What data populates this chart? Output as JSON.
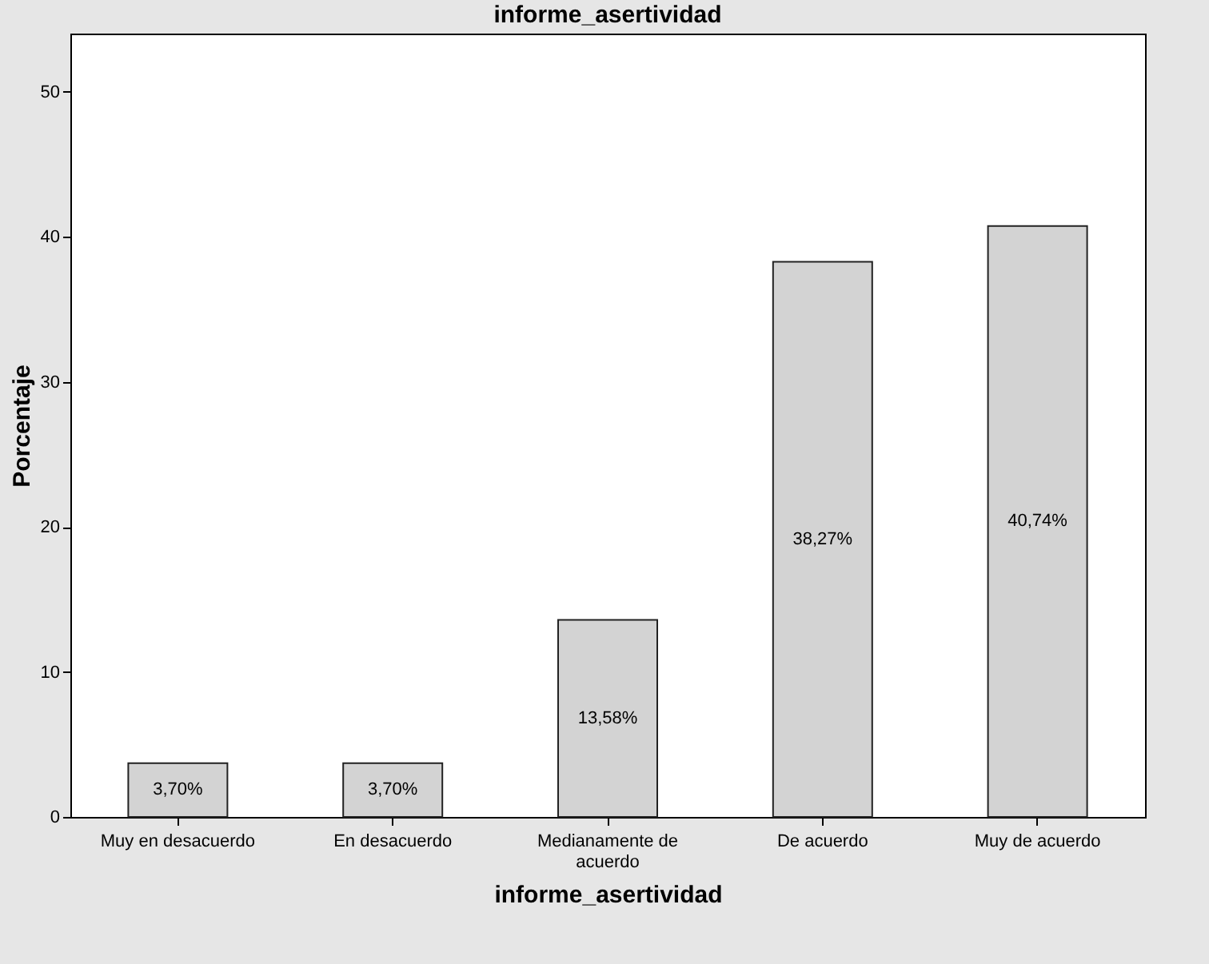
{
  "chart_data": {
    "type": "bar",
    "title": "informe_asertividad",
    "xlabel": "informe_asertividad",
    "ylabel": "Porcentaje",
    "categories": [
      "Muy en desacuerdo",
      "En desacuerdo",
      "Medianamente de acuerdo",
      "De acuerdo",
      "Muy de acuerdo"
    ],
    "values": [
      3.7,
      3.7,
      13.58,
      38.27,
      40.74
    ],
    "value_labels": [
      "3,70%",
      "3,70%",
      "13,58%",
      "38,27%",
      "40,74%"
    ],
    "color": "#d3d3d3",
    "ylim": [
      0,
      54
    ],
    "yticks": [
      0,
      10,
      20,
      30,
      40,
      50
    ],
    "grid": false
  }
}
